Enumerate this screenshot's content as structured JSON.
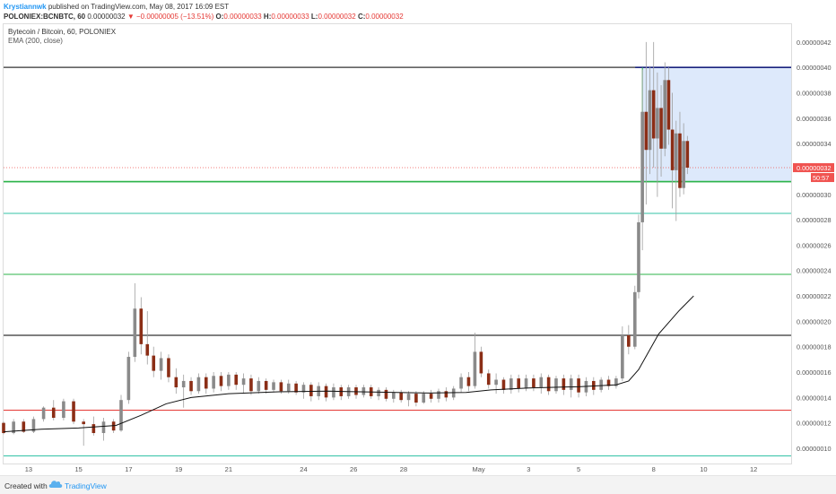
{
  "header": {
    "author": "Krystiannwk",
    "published_text": "published on TradingView.com, May 08, 2017 16:09 EST",
    "symbol": "POLONIEX:BCNBTC, 60",
    "last": "0.00000032",
    "change": "▼ −0.00000005 (−13.51%)",
    "o_label": "O:",
    "o_value": "0.00000033",
    "h_label": "H:",
    "h_value": "0.00000033",
    "l_label": "L:",
    "l_value": "0.00000032",
    "c_label": "C:",
    "c_value": "0.00000032"
  },
  "legend": {
    "title": "Bytecoin / Bitcoin, 60, POLONIEX",
    "indicator": "EMA (200, close)"
  },
  "price_tag": {
    "value": "0.00000032",
    "countdown": "50:57"
  },
  "footer": {
    "created": "Created with",
    "brand": "TradingView"
  },
  "colors": {
    "up": "#8a8a8a",
    "down": "#8b2e16",
    "ema": "#111111",
    "fib_green": "#2db34a",
    "fib_teal": "#33c3a6",
    "fib_red": "#e53935",
    "dark_line": "#333333",
    "box_fill": "#dde9fb",
    "box_line": "#1a237e",
    "price_tag": "#f05350"
  },
  "chart_data": {
    "type": "candlestick",
    "y_scale": "linear",
    "ylim": [
      8.8e-08,
      4.34e-07
    ],
    "xlim": [
      "Apr 12 2017",
      "May 13 2017"
    ],
    "y_ticks": [
      "0.00000042",
      "0.00000040",
      "0.00000038",
      "0.00000036",
      "0.00000034",
      "0.00000032",
      "0.00000030",
      "0.00000028",
      "0.00000026",
      "0.00000024",
      "0.00000022",
      "0.00000020",
      "0.00000018",
      "0.00000016",
      "0.00000014",
      "0.00000012",
      "0.00000010"
    ],
    "x_ticks": [
      {
        "label": "13",
        "day": 13
      },
      {
        "label": "15",
        "day": 15
      },
      {
        "label": "17",
        "day": 17
      },
      {
        "label": "19",
        "day": 19
      },
      {
        "label": "21",
        "day": 21
      },
      {
        "label": "24",
        "day": 24
      },
      {
        "label": "26",
        "day": 26
      },
      {
        "label": "28",
        "day": 28
      },
      {
        "label": "May",
        "day": 31
      },
      {
        "label": "3",
        "day": 33
      },
      {
        "label": "5",
        "day": 35
      },
      {
        "label": "8",
        "day": 38
      },
      {
        "label": "10",
        "day": 40
      },
      {
        "label": "12",
        "day": 42
      }
    ],
    "horizontal_levels": [
      {
        "price": 4e-07,
        "style": "dark"
      },
      {
        "price": 3.1e-07,
        "style": "green"
      },
      {
        "price": 2.85e-07,
        "style": "teal"
      },
      {
        "price": 2.37e-07,
        "style": "green"
      },
      {
        "price": 1.89e-07,
        "style": "dark"
      },
      {
        "price": 1.3e-07,
        "style": "red"
      },
      {
        "price": 9.4e-08,
        "style": "teal"
      }
    ],
    "last_price_line": 3.21e-07,
    "rectangle": {
      "x0_day": 37.55,
      "x1_day": 43.65,
      "y0": 3.1e-07,
      "y1": 4e-07
    },
    "candles": [
      {
        "d": 12.0,
        "o": 12.0,
        "h": 12.1,
        "l": 11.1,
        "c": 11.2
      },
      {
        "d": 12.4,
        "o": 11.2,
        "h": 12.3,
        "l": 11.1,
        "c": 12.1
      },
      {
        "d": 12.8,
        "o": 12.1,
        "h": 12.3,
        "l": 11.2,
        "c": 11.3
      },
      {
        "d": 13.2,
        "o": 11.3,
        "h": 12.5,
        "l": 11.2,
        "c": 12.3
      },
      {
        "d": 13.6,
        "o": 12.3,
        "h": 13.3,
        "l": 12.1,
        "c": 13.2
      },
      {
        "d": 14.0,
        "o": 13.2,
        "h": 13.8,
        "l": 12.2,
        "c": 12.4
      },
      {
        "d": 14.4,
        "o": 12.4,
        "h": 13.9,
        "l": 12.2,
        "c": 13.7
      },
      {
        "d": 14.8,
        "o": 13.7,
        "h": 13.9,
        "l": 11.9,
        "c": 12.1
      },
      {
        "d": 15.2,
        "o": 12.1,
        "h": 12.3,
        "l": 10.2,
        "c": 11.9
      },
      {
        "d": 15.6,
        "o": 11.9,
        "h": 12.5,
        "l": 11.0,
        "c": 11.2
      },
      {
        "d": 16.0,
        "o": 11.2,
        "h": 12.4,
        "l": 10.6,
        "c": 12.1
      },
      {
        "d": 16.4,
        "o": 12.1,
        "h": 12.3,
        "l": 11.2,
        "c": 11.4
      },
      {
        "d": 16.7,
        "o": 11.4,
        "h": 14.2,
        "l": 11.3,
        "c": 13.8
      },
      {
        "d": 17.0,
        "o": 13.8,
        "h": 17.6,
        "l": 13.5,
        "c": 17.2
      },
      {
        "d": 17.25,
        "o": 17.2,
        "h": 23.0,
        "l": 16.8,
        "c": 21.0
      },
      {
        "d": 17.5,
        "o": 21.0,
        "h": 21.9,
        "l": 17.4,
        "c": 18.2
      },
      {
        "d": 17.75,
        "o": 18.2,
        "h": 20.8,
        "l": 16.6,
        "c": 17.3
      },
      {
        "d": 18.0,
        "o": 17.3,
        "h": 18.0,
        "l": 15.6,
        "c": 16.1
      },
      {
        "d": 18.3,
        "o": 16.1,
        "h": 17.6,
        "l": 15.4,
        "c": 17.1
      },
      {
        "d": 18.6,
        "o": 17.1,
        "h": 17.4,
        "l": 15.2,
        "c": 15.6
      },
      {
        "d": 18.9,
        "o": 15.6,
        "h": 16.3,
        "l": 14.3,
        "c": 14.8
      },
      {
        "d": 19.2,
        "o": 14.8,
        "h": 15.8,
        "l": 13.2,
        "c": 15.3
      },
      {
        "d": 19.5,
        "o": 15.3,
        "h": 15.6,
        "l": 14.2,
        "c": 14.5
      },
      {
        "d": 19.8,
        "o": 14.5,
        "h": 15.9,
        "l": 14.3,
        "c": 15.6
      },
      {
        "d": 20.1,
        "o": 15.6,
        "h": 15.9,
        "l": 14.3,
        "c": 14.7
      },
      {
        "d": 20.4,
        "o": 14.7,
        "h": 16.0,
        "l": 14.4,
        "c": 15.7
      },
      {
        "d": 20.7,
        "o": 15.7,
        "h": 16.0,
        "l": 14.5,
        "c": 14.9
      },
      {
        "d": 21.0,
        "o": 14.9,
        "h": 16.0,
        "l": 14.6,
        "c": 15.8
      },
      {
        "d": 21.3,
        "o": 15.8,
        "h": 16.0,
        "l": 14.6,
        "c": 15.0
      },
      {
        "d": 21.6,
        "o": 15.0,
        "h": 15.9,
        "l": 14.3,
        "c": 15.5
      },
      {
        "d": 21.9,
        "o": 15.5,
        "h": 15.8,
        "l": 14.2,
        "c": 14.5
      },
      {
        "d": 22.2,
        "o": 14.5,
        "h": 15.6,
        "l": 14.3,
        "c": 15.3
      },
      {
        "d": 22.5,
        "o": 15.3,
        "h": 15.5,
        "l": 14.3,
        "c": 14.6
      },
      {
        "d": 22.8,
        "o": 14.6,
        "h": 15.4,
        "l": 14.4,
        "c": 15.2
      },
      {
        "d": 23.1,
        "o": 15.2,
        "h": 15.4,
        "l": 14.3,
        "c": 14.5
      },
      {
        "d": 23.4,
        "o": 14.5,
        "h": 15.4,
        "l": 14.3,
        "c": 15.1
      },
      {
        "d": 23.7,
        "o": 15.1,
        "h": 15.3,
        "l": 14.2,
        "c": 14.4
      },
      {
        "d": 24.0,
        "o": 14.4,
        "h": 15.2,
        "l": 13.9,
        "c": 15.0
      },
      {
        "d": 24.3,
        "o": 15.0,
        "h": 15.2,
        "l": 13.7,
        "c": 14.1
      },
      {
        "d": 24.6,
        "o": 14.1,
        "h": 15.2,
        "l": 13.8,
        "c": 14.9
      },
      {
        "d": 24.9,
        "o": 14.9,
        "h": 15.1,
        "l": 13.7,
        "c": 14.0
      },
      {
        "d": 25.2,
        "o": 14.0,
        "h": 15.1,
        "l": 13.8,
        "c": 14.8
      },
      {
        "d": 25.5,
        "o": 14.8,
        "h": 15.0,
        "l": 13.8,
        "c": 14.1
      },
      {
        "d": 25.8,
        "o": 14.1,
        "h": 15.0,
        "l": 13.9,
        "c": 14.8
      },
      {
        "d": 26.1,
        "o": 14.8,
        "h": 15.0,
        "l": 13.9,
        "c": 14.2
      },
      {
        "d": 26.4,
        "o": 14.2,
        "h": 15.0,
        "l": 14.0,
        "c": 14.8
      },
      {
        "d": 26.7,
        "o": 14.8,
        "h": 15.0,
        "l": 13.9,
        "c": 14.1
      },
      {
        "d": 27.0,
        "o": 14.1,
        "h": 14.8,
        "l": 13.8,
        "c": 14.6
      },
      {
        "d": 27.3,
        "o": 14.6,
        "h": 14.8,
        "l": 13.7,
        "c": 13.9
      },
      {
        "d": 27.6,
        "o": 13.9,
        "h": 14.6,
        "l": 13.6,
        "c": 14.4
      },
      {
        "d": 27.9,
        "o": 14.4,
        "h": 14.6,
        "l": 13.6,
        "c": 13.8
      },
      {
        "d": 28.2,
        "o": 13.8,
        "h": 14.5,
        "l": 13.3,
        "c": 14.3
      },
      {
        "d": 28.5,
        "o": 14.3,
        "h": 14.5,
        "l": 13.3,
        "c": 13.6
      },
      {
        "d": 28.8,
        "o": 13.6,
        "h": 14.5,
        "l": 13.5,
        "c": 14.3
      },
      {
        "d": 29.1,
        "o": 14.3,
        "h": 14.6,
        "l": 13.6,
        "c": 13.9
      },
      {
        "d": 29.4,
        "o": 13.9,
        "h": 14.7,
        "l": 13.6,
        "c": 14.5
      },
      {
        "d": 29.7,
        "o": 14.5,
        "h": 14.8,
        "l": 13.7,
        "c": 14.0
      },
      {
        "d": 30.0,
        "o": 14.0,
        "h": 14.9,
        "l": 13.8,
        "c": 14.7
      },
      {
        "d": 30.3,
        "o": 14.7,
        "h": 15.9,
        "l": 14.4,
        "c": 15.6
      },
      {
        "d": 30.6,
        "o": 15.6,
        "h": 16.0,
        "l": 14.5,
        "c": 14.9
      },
      {
        "d": 30.85,
        "o": 14.9,
        "h": 19.1,
        "l": 14.7,
        "c": 17.6
      },
      {
        "d": 31.1,
        "o": 17.6,
        "h": 18.0,
        "l": 15.6,
        "c": 15.9
      },
      {
        "d": 31.4,
        "o": 15.9,
        "h": 16.2,
        "l": 14.7,
        "c": 15.0
      },
      {
        "d": 31.7,
        "o": 15.0,
        "h": 15.9,
        "l": 14.3,
        "c": 15.4
      },
      {
        "d": 32.0,
        "o": 15.4,
        "h": 15.6,
        "l": 14.3,
        "c": 14.6
      },
      {
        "d": 32.3,
        "o": 14.6,
        "h": 15.8,
        "l": 14.3,
        "c": 15.5
      },
      {
        "d": 32.6,
        "o": 15.5,
        "h": 15.8,
        "l": 14.4,
        "c": 14.7
      },
      {
        "d": 32.9,
        "o": 14.7,
        "h": 15.8,
        "l": 14.5,
        "c": 15.5
      },
      {
        "d": 33.2,
        "o": 15.5,
        "h": 15.8,
        "l": 14.5,
        "c": 14.8
      },
      {
        "d": 33.5,
        "o": 14.8,
        "h": 15.9,
        "l": 14.3,
        "c": 15.6
      },
      {
        "d": 33.8,
        "o": 15.6,
        "h": 15.8,
        "l": 14.2,
        "c": 14.5
      },
      {
        "d": 34.1,
        "o": 14.5,
        "h": 15.7,
        "l": 14.3,
        "c": 15.5
      },
      {
        "d": 34.4,
        "o": 15.5,
        "h": 15.8,
        "l": 14.2,
        "c": 14.6
      },
      {
        "d": 34.7,
        "o": 14.6,
        "h": 15.8,
        "l": 14.0,
        "c": 15.5
      },
      {
        "d": 35.0,
        "o": 15.5,
        "h": 15.8,
        "l": 14.0,
        "c": 14.4
      },
      {
        "d": 35.3,
        "o": 14.4,
        "h": 15.6,
        "l": 14.1,
        "c": 15.3
      },
      {
        "d": 35.6,
        "o": 15.3,
        "h": 15.6,
        "l": 14.2,
        "c": 14.6
      },
      {
        "d": 35.9,
        "o": 14.6,
        "h": 15.6,
        "l": 14.4,
        "c": 15.4
      },
      {
        "d": 36.2,
        "o": 15.4,
        "h": 15.7,
        "l": 14.6,
        "c": 14.9
      },
      {
        "d": 36.5,
        "o": 14.9,
        "h": 15.7,
        "l": 14.7,
        "c": 15.5
      },
      {
        "d": 36.75,
        "o": 15.5,
        "h": 19.6,
        "l": 15.3,
        "c": 18.9
      },
      {
        "d": 37.0,
        "o": 18.9,
        "h": 19.7,
        "l": 17.4,
        "c": 18.0
      },
      {
        "d": 37.25,
        "o": 18.0,
        "h": 22.8,
        "l": 17.8,
        "c": 22.3
      },
      {
        "d": 37.4,
        "o": 22.3,
        "h": 28.4,
        "l": 21.8,
        "c": 27.8
      },
      {
        "d": 37.55,
        "o": 27.8,
        "h": 39.8,
        "l": 25.6,
        "c": 36.5
      },
      {
        "d": 37.7,
        "o": 36.5,
        "h": 42.0,
        "l": 29.2,
        "c": 33.5
      },
      {
        "d": 37.85,
        "o": 33.5,
        "h": 40.1,
        "l": 31.6,
        "c": 38.2
      },
      {
        "d": 38.0,
        "o": 38.2,
        "h": 42.0,
        "l": 32.1,
        "c": 34.4
      },
      {
        "d": 38.15,
        "o": 34.4,
        "h": 39.6,
        "l": 29.8,
        "c": 36.8
      },
      {
        "d": 38.3,
        "o": 36.8,
        "h": 38.6,
        "l": 31.4,
        "c": 33.6
      },
      {
        "d": 38.45,
        "o": 33.6,
        "h": 40.4,
        "l": 33.0,
        "c": 39.0
      },
      {
        "d": 38.6,
        "o": 39.0,
        "h": 40.0,
        "l": 33.9,
        "c": 35.1
      },
      {
        "d": 38.75,
        "o": 35.1,
        "h": 38.0,
        "l": 28.9,
        "c": 31.9
      },
      {
        "d": 38.9,
        "o": 31.9,
        "h": 35.8,
        "l": 27.9,
        "c": 34.8
      },
      {
        "d": 39.05,
        "o": 34.8,
        "h": 36.5,
        "l": 29.8,
        "c": 30.5
      },
      {
        "d": 39.2,
        "o": 30.5,
        "h": 35.6,
        "l": 30.0,
        "c": 34.2
      },
      {
        "d": 39.35,
        "o": 34.2,
        "h": 34.6,
        "l": 31.6,
        "c": 32.1
      }
    ],
    "ema": [
      [
        12.0,
        11.3
      ],
      [
        13.5,
        11.5
      ],
      [
        15.0,
        11.6
      ],
      [
        16.5,
        11.8
      ],
      [
        17.5,
        12.6
      ],
      [
        18.5,
        13.5
      ],
      [
        19.5,
        14.0
      ],
      [
        21.0,
        14.3
      ],
      [
        23.0,
        14.45
      ],
      [
        25.0,
        14.5
      ],
      [
        27.0,
        14.42
      ],
      [
        29.0,
        14.35
      ],
      [
        30.5,
        14.4
      ],
      [
        31.5,
        14.6
      ],
      [
        33.0,
        14.75
      ],
      [
        35.0,
        14.85
      ],
      [
        36.5,
        15.0
      ],
      [
        37.0,
        15.3
      ],
      [
        37.4,
        16.2
      ],
      [
        37.8,
        17.6
      ],
      [
        38.2,
        19.0
      ],
      [
        38.6,
        19.9
      ],
      [
        39.0,
        20.8
      ],
      [
        39.4,
        21.6
      ],
      [
        39.6,
        22.0
      ]
    ]
  }
}
